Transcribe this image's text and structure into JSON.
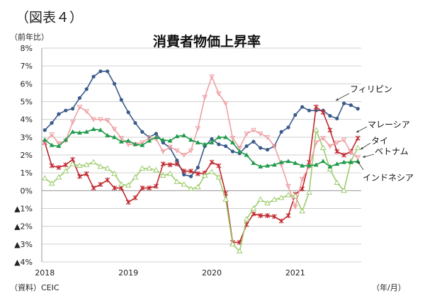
{
  "figure_label": "（図表４）",
  "source": "（資料）CEIC",
  "chart_data": {
    "type": "line",
    "title": "消費者物価上昇率",
    "ylabel": "（前年比）",
    "xlabel": "（年/月）",
    "ylim": [
      -4,
      8
    ],
    "yticks": [
      {
        "value": 8,
        "label": "8%"
      },
      {
        "value": 7,
        "label": "7%"
      },
      {
        "value": 6,
        "label": "6%"
      },
      {
        "value": 5,
        "label": "5%"
      },
      {
        "value": 4,
        "label": "4%"
      },
      {
        "value": 3,
        "label": "3%"
      },
      {
        "value": 2,
        "label": "2%"
      },
      {
        "value": 1,
        "label": "1%"
      },
      {
        "value": 0,
        "label": "0%"
      },
      {
        "value": -1,
        "label": "▲1%"
      },
      {
        "value": -2,
        "label": "▲2%"
      },
      {
        "value": -3,
        "label": "▲3%"
      },
      {
        "value": -4,
        "label": "▲4%"
      }
    ],
    "x_start": "2018-01",
    "x_end": "2021-10",
    "xticks": [
      {
        "month": "2018-01",
        "label": "2018"
      },
      {
        "month": "2019-01",
        "label": "2019"
      },
      {
        "month": "2020-01",
        "label": "2020"
      },
      {
        "month": "2021-01",
        "label": "2021"
      }
    ],
    "grid": true,
    "series": [
      {
        "name": "フィリピン",
        "color": "#3b5a8a",
        "marker": "circle",
        "values": [
          3.4,
          3.8,
          4.3,
          4.5,
          4.6,
          5.2,
          5.7,
          6.4,
          6.7,
          6.7,
          6.0,
          5.1,
          4.4,
          3.8,
          3.3,
          3.0,
          3.2,
          2.7,
          2.4,
          1.7,
          0.9,
          0.8,
          1.3,
          2.5,
          2.9,
          2.6,
          2.5,
          2.2,
          2.1,
          2.5,
          2.75,
          2.4,
          2.3,
          2.5,
          3.3,
          3.55,
          4.25,
          4.7,
          4.5,
          4.5,
          4.5,
          4.2,
          4.05,
          4.9,
          4.8,
          4.6
        ]
      },
      {
        "name": "マレーシア",
        "color": "#c0272d",
        "marker": "star",
        "values": [
          2.7,
          1.4,
          1.3,
          1.45,
          1.75,
          0.8,
          0.95,
          0.15,
          0.35,
          0.6,
          0.15,
          0.15,
          -0.65,
          -0.4,
          0.15,
          0.15,
          0.25,
          1.5,
          1.45,
          1.5,
          1.1,
          1.1,
          0.95,
          1.0,
          1.6,
          1.4,
          -0.15,
          -2.9,
          -2.9,
          -1.9,
          -1.3,
          -1.4,
          -1.4,
          -1.45,
          -1.7,
          -1.4,
          -0.2,
          0.1,
          1.6,
          4.7,
          4.4,
          3.4,
          2.2,
          2.0,
          2.2,
          2.95
        ]
      },
      {
        "name": "タイ",
        "color": "#9ccc6c",
        "marker": "triangle-open",
        "values": [
          0.7,
          0.4,
          0.75,
          1.1,
          1.5,
          1.4,
          1.45,
          1.6,
          1.35,
          1.25,
          0.95,
          0.35,
          0.3,
          0.75,
          1.25,
          1.25,
          1.15,
          0.85,
          0.95,
          0.5,
          0.35,
          0.1,
          0.2,
          0.85,
          1.05,
          0.75,
          -0.5,
          -3.0,
          -3.4,
          -1.6,
          -1.0,
          -0.5,
          -0.7,
          -0.5,
          -0.4,
          -0.25,
          -0.3,
          -1.15,
          -0.1,
          3.4,
          2.4,
          1.2,
          0.45,
          0.0,
          1.65,
          2.4
        ]
      },
      {
        "name": "ベトナム",
        "color": "#eea0a4",
        "marker": "triangle-down",
        "values": [
          2.7,
          3.15,
          2.65,
          2.8,
          3.85,
          4.7,
          4.45,
          4.0,
          4.0,
          3.95,
          3.45,
          2.95,
          2.6,
          2.6,
          2.7,
          2.95,
          2.9,
          2.2,
          2.45,
          2.25,
          2.0,
          2.25,
          3.5,
          5.25,
          6.4,
          5.45,
          4.9,
          2.95,
          2.4,
          3.2,
          3.4,
          3.2,
          3.0,
          2.5,
          1.45,
          0.25,
          -0.9,
          0.65,
          1.35,
          2.7,
          2.95,
          2.5,
          2.7,
          2.85,
          2.15,
          1.85
        ]
      },
      {
        "name": "インドネシア",
        "color": "#1f9a4a",
        "marker": "triangle",
        "values": [
          2.85,
          2.55,
          2.5,
          2.85,
          3.3,
          3.25,
          3.3,
          3.45,
          3.4,
          3.1,
          3.0,
          2.75,
          2.8,
          2.6,
          2.55,
          2.8,
          3.0,
          2.85,
          2.8,
          3.05,
          3.1,
          2.85,
          2.7,
          2.6,
          2.7,
          3.0,
          3.0,
          2.7,
          2.2,
          2.0,
          1.55,
          1.35,
          1.4,
          1.45,
          1.6,
          1.65,
          1.55,
          1.4,
          1.4,
          1.45,
          1.65,
          1.35,
          1.5,
          1.6,
          1.6,
          1.65
        ]
      }
    ]
  }
}
